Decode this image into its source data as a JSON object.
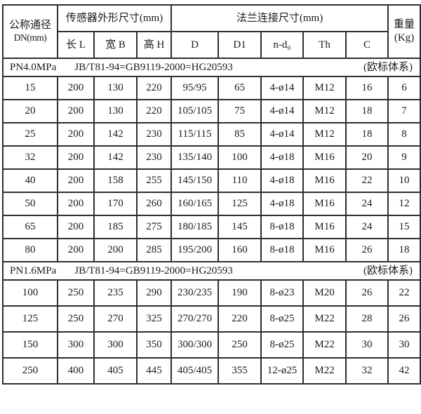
{
  "table": {
    "header": {
      "dn_line1": "公称通径",
      "dn_line2": "DN(mm)",
      "sensor_group": "传感器外形尺寸(mm)",
      "sensor_cols": [
        "长 L",
        "宽 B",
        "高 H"
      ],
      "flange_group": "法兰连接尺寸(mm)",
      "flange_cols": [
        "D",
        "D1",
        "n-d₀",
        "Th",
        "C"
      ],
      "weight_line1": "重量",
      "weight_line2": "(Kg)"
    },
    "sections": [
      {
        "pn": "PN4.0MPa",
        "standard": "JB/T81-94=GB9119-2000=HG20593",
        "note": "(欧标体系)",
        "rows": [
          [
            "15",
            "200",
            "130",
            "220",
            "95/95",
            "65",
            "4-ø14",
            "M12",
            "16",
            "6"
          ],
          [
            "20",
            "200",
            "130",
            "220",
            "105/105",
            "75",
            "4-ø14",
            "M12",
            "18",
            "7"
          ],
          [
            "25",
            "200",
            "142",
            "230",
            "115/115",
            "85",
            "4-ø14",
            "M12",
            "18",
            "8"
          ],
          [
            "32",
            "200",
            "142",
            "230",
            "135/140",
            "100",
            "4-ø18",
            "M16",
            "20",
            "9"
          ],
          [
            "40",
            "200",
            "158",
            "255",
            "145/150",
            "110",
            "4-ø18",
            "M16",
            "22",
            "10"
          ],
          [
            "50",
            "200",
            "170",
            "260",
            "160/165",
            "125",
            "4-ø18",
            "M16",
            "24",
            "12"
          ],
          [
            "65",
            "200",
            "185",
            "275",
            "180/185",
            "145",
            "8-ø18",
            "M16",
            "24",
            "15"
          ],
          [
            "80",
            "200",
            "200",
            "285",
            "195/200",
            "160",
            "8-ø18",
            "M16",
            "26",
            "18"
          ]
        ]
      },
      {
        "pn": "PN1.6MPa",
        "standard": "JB/T81-94=GB9119-2000=HG20593",
        "note": "(欧标体系)",
        "rows": [
          [
            "100",
            "250",
            "235",
            "290",
            "230/235",
            "190",
            "8-ø23",
            "M20",
            "26",
            "22"
          ],
          [
            "125",
            "250",
            "270",
            "325",
            "270/270",
            "220",
            "8-ø25",
            "M22",
            "28",
            "26"
          ],
          [
            "150",
            "300",
            "300",
            "350",
            "300/300",
            "250",
            "8-ø25",
            "M22",
            "30",
            "30"
          ],
          [
            "250",
            "400",
            "405",
            "445",
            "405/405",
            "355",
            "12-ø25",
            "M22",
            "32",
            "42"
          ]
        ]
      }
    ],
    "colors": {
      "border": "#2f2f2f",
      "text": "#1a1a1a",
      "background": "#ffffff"
    }
  }
}
